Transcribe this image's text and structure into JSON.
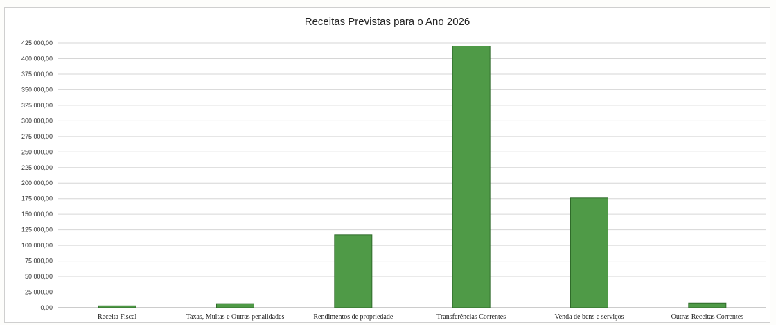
{
  "chart_data": {
    "type": "bar",
    "title": "Receitas Previstas para o Ano 2026",
    "xlabel": "",
    "ylabel": "",
    "ylim": [
      0,
      425000
    ],
    "yticks": [
      "0,00",
      "25 000,00",
      "50 000,00",
      "75 000,00",
      "100 000,00",
      "125 000,00",
      "150 000,00",
      "175 000,00",
      "200 000,00",
      "225 000,00",
      "250 000,00",
      "275 000,00",
      "300 000,00",
      "325 000,00",
      "350 000,00",
      "375 000,00",
      "400 000,00",
      "425 000,00"
    ],
    "categories": [
      "Receita Fiscal",
      "Taxas, Multas e Outras penalidades",
      "Rendimentos de propriedade",
      "Transferências Correntes",
      "Venda de bens e serviços",
      "Outras Receitas Correntes"
    ],
    "values": [
      3000,
      6500,
      117000,
      420000,
      176000,
      7500
    ],
    "grid": true,
    "legend": "none",
    "bar_color": "#4f9a47",
    "bar_edge_color": "#2f6b2a"
  }
}
